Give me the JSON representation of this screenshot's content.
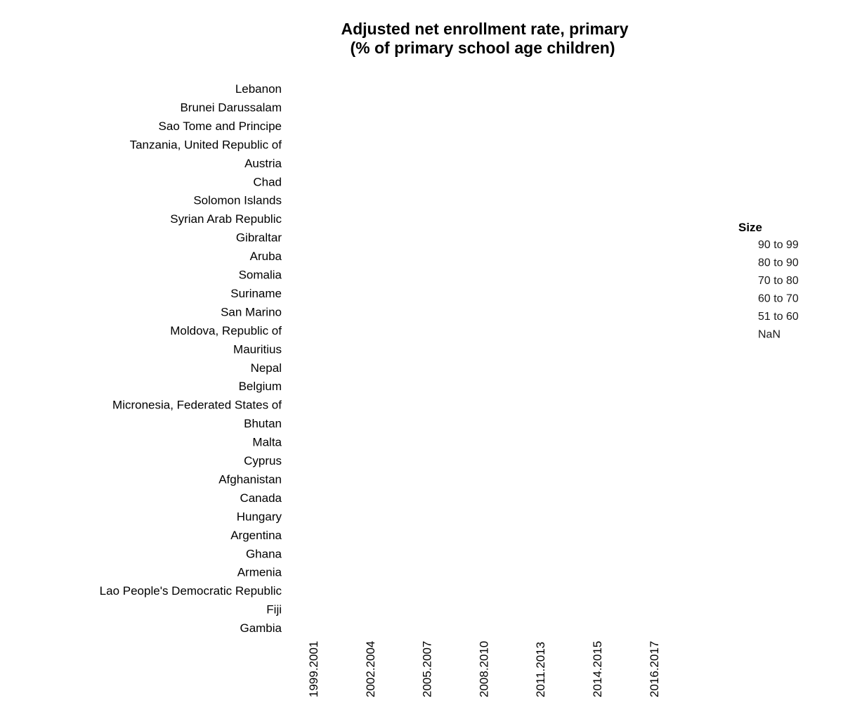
{
  "chart_data": {
    "type": "scatter",
    "title": [
      "Adjusted net enrollment rate, primary",
      "(% of primary school age children)"
    ],
    "countries": [
      "Lebanon",
      "Brunei Darussalam",
      "Sao Tome and Principe",
      "Tanzania, United Republic of",
      "Austria",
      "Chad",
      "Solomon Islands",
      "Syrian Arab Republic",
      "Gibraltar",
      "Aruba",
      "Somalia",
      "Suriname",
      "San Marino",
      "Moldova, Republic of",
      "Mauritius",
      "Nepal",
      "Belgium",
      "Micronesia, Federated States of",
      "Bhutan",
      "Malta",
      "Cyprus",
      "Afghanistan",
      "Canada",
      "Hungary",
      "Argentina",
      "Ghana",
      "Armenia",
      "Lao People's Democratic Republic",
      "Fiji",
      "Gambia"
    ],
    "periods": [
      "1999.2001",
      "2002.2004",
      "2005.2007",
      "2008.2010",
      "2011.2013",
      "2014.2015",
      "2016.2017"
    ],
    "legend": {
      "title": "Size",
      "entries": [
        "90 to 99",
        "80 to 90",
        "70 to 80",
        "60 to 70",
        "51 to 60",
        "NaN"
      ]
    },
    "points": []
  }
}
